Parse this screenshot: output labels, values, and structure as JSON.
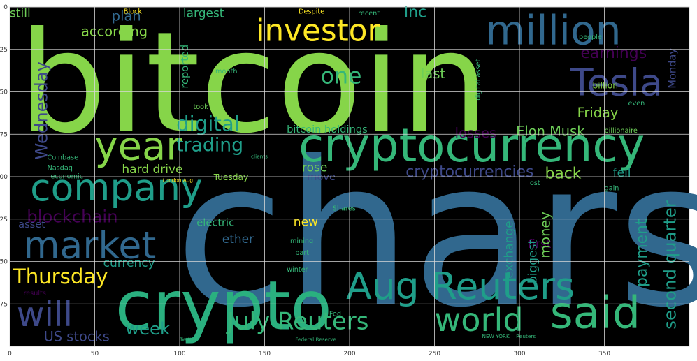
{
  "chart_data": {
    "type": "wordcloud",
    "title": "",
    "xlabel": "",
    "ylabel": "",
    "background": "#000000",
    "grid": true,
    "xlim": [
      0,
      400
    ],
    "ylim": [
      200,
      0
    ],
    "x_ticks": [
      0,
      50,
      100,
      150,
      200,
      250,
      300,
      350
    ],
    "y_ticks": [
      0,
      25,
      50,
      75,
      100,
      125,
      150,
      175
    ],
    "x_tick_labels": [
      "0",
      "50",
      "100",
      "150",
      "200",
      "250",
      "300",
      "350"
    ],
    "y_tick_labels": [
      "0",
      "25",
      "50",
      "75",
      "100",
      "125",
      "150",
      "175"
    ],
    "words": [
      {
        "text": "bitcoin",
        "x": 5,
        "y": 73,
        "size": 82,
        "color": "#86d549"
      },
      {
        "text": "chars",
        "x": 97,
        "y": 175,
        "size": 118,
        "color": "#31688e"
      },
      {
        "text": "crypto",
        "x": 62,
        "y": 190,
        "size": 40,
        "color": "#2ab07f"
      },
      {
        "text": "cryptocurrency",
        "x": 170,
        "y": 91,
        "size": 27,
        "color": "#35b779"
      },
      {
        "text": "Aug Reuters",
        "x": 198,
        "y": 172,
        "size": 22,
        "color": "#1f9e89"
      },
      {
        "text": "said",
        "x": 318,
        "y": 189,
        "size": 26,
        "color": "#35b779"
      },
      {
        "text": "million",
        "x": 280,
        "y": 22,
        "size": 24,
        "color": "#31688e"
      },
      {
        "text": "Tesla",
        "x": 330,
        "y": 52,
        "size": 22,
        "color": "#3e4989"
      },
      {
        "text": "investor",
        "x": 145,
        "y": 20,
        "size": 18,
        "color": "#fde725"
      },
      {
        "text": "year",
        "x": 50,
        "y": 90,
        "size": 23,
        "color": "#86d549"
      },
      {
        "text": "company",
        "x": 12,
        "y": 114,
        "size": 22,
        "color": "#1f9e89"
      },
      {
        "text": "market",
        "x": 8,
        "y": 148,
        "size": 22,
        "color": "#31688e"
      },
      {
        "text": "will",
        "x": 4,
        "y": 188,
        "size": 20,
        "color": "#3e4989"
      },
      {
        "text": "world",
        "x": 250,
        "y": 191,
        "size": 19,
        "color": "#35b779"
      },
      {
        "text": "July Reuters",
        "x": 128,
        "y": 190,
        "size": 14,
        "color": "#35b779"
      },
      {
        "text": "Thursday",
        "x": 2,
        "y": 163,
        "size": 12,
        "color": "#fde725"
      },
      {
        "text": "digital",
        "x": 98,
        "y": 73,
        "size": 12,
        "color": "#1f9e89"
      },
      {
        "text": "one",
        "x": 183,
        "y": 45,
        "size": 13,
        "color": "#35b779"
      },
      {
        "text": "trading",
        "x": 98,
        "y": 85,
        "size": 11,
        "color": "#1f9e89"
      },
      {
        "text": "blockchain",
        "x": 10,
        "y": 127,
        "size": 10,
        "color": "#440154"
      },
      {
        "text": "week",
        "x": 68,
        "y": 193,
        "size": 10,
        "color": "#1f9e89"
      },
      {
        "text": "US stocks",
        "x": 20,
        "y": 197,
        "size": 8,
        "color": "#3e4989"
      },
      {
        "text": "according",
        "x": 42,
        "y": 17,
        "size": 8,
        "color": "#86d549"
      },
      {
        "text": "plan",
        "x": 60,
        "y": 8,
        "size": 8,
        "color": "#31688e"
      },
      {
        "text": "still",
        "x": 0,
        "y": 6,
        "size": 7,
        "color": "#6ece58"
      },
      {
        "text": "largest",
        "x": 102,
        "y": 6,
        "size": 7,
        "color": "#35b779"
      },
      {
        "text": "Inc",
        "x": 232,
        "y": 6,
        "size": 9,
        "color": "#1f9e89"
      },
      {
        "text": "earnings",
        "x": 336,
        "y": 30,
        "size": 9,
        "color": "#440154"
      },
      {
        "text": "Friday",
        "x": 334,
        "y": 65,
        "size": 8,
        "color": "#86d549"
      },
      {
        "text": "Elon Musk",
        "x": 298,
        "y": 76,
        "size": 8,
        "color": "#6ece58"
      },
      {
        "text": "losses",
        "x": 262,
        "y": 77,
        "size": 8,
        "color": "#440154"
      },
      {
        "text": "bitcoin holdings",
        "x": 163,
        "y": 74,
        "size": 6,
        "color": "#35b779"
      },
      {
        "text": "cryptocurrencies",
        "x": 233,
        "y": 100,
        "size": 9,
        "color": "#3e4989"
      },
      {
        "text": "back",
        "x": 315,
        "y": 101,
        "size": 9,
        "color": "#86d549"
      },
      {
        "text": "fell",
        "x": 355,
        "y": 100,
        "size": 7,
        "color": "#1f9e89"
      },
      {
        "text": "hard drive",
        "x": 66,
        "y": 98,
        "size": 7,
        "color": "#86d549"
      },
      {
        "text": "rose",
        "x": 172,
        "y": 97,
        "size": 7,
        "color": "#6ece58"
      },
      {
        "text": "move",
        "x": 175,
        "y": 102,
        "size": 6,
        "color": "#3e4989"
      },
      {
        "text": "new",
        "x": 167,
        "y": 129,
        "size": 7,
        "color": "#fde725"
      },
      {
        "text": "electric",
        "x": 110,
        "y": 129,
        "size": 6,
        "color": "#35b779"
      },
      {
        "text": "ether",
        "x": 125,
        "y": 139,
        "size": 7,
        "color": "#31688e"
      },
      {
        "text": "currency",
        "x": 55,
        "y": 153,
        "size": 7,
        "color": "#1f9e89"
      },
      {
        "text": "asset",
        "x": 5,
        "y": 130,
        "size": 6,
        "color": "#3e4989"
      },
      {
        "text": "last",
        "x": 242,
        "y": 42,
        "size": 8,
        "color": "#6ece58"
      },
      {
        "text": "first",
        "x": 305,
        "y": 142,
        "size": 7,
        "color": "#440154"
      },
      {
        "text": "Tuesday",
        "x": 120,
        "y": 102,
        "size": 5,
        "color": "#86d549"
      },
      {
        "text": "Wednesday",
        "x": 22,
        "y": 90,
        "size": 10,
        "color": "#3e4989",
        "rotate": true
      },
      {
        "text": "reported",
        "x": 105,
        "y": 48,
        "size": 6,
        "color": "#35b779",
        "rotate": true
      },
      {
        "text": "second quarter",
        "x": 392,
        "y": 190,
        "size": 10,
        "color": "#1f9e89",
        "rotate": true
      },
      {
        "text": "payment",
        "x": 375,
        "y": 165,
        "size": 9,
        "color": "#1f9e89",
        "rotate": true
      },
      {
        "text": "money",
        "x": 318,
        "y": 148,
        "size": 8,
        "color": "#6ece58",
        "rotate": true
      },
      {
        "text": "exchange",
        "x": 296,
        "y": 160,
        "size": 7,
        "color": "#1f9e89",
        "rotate": true
      },
      {
        "text": "biggest",
        "x": 310,
        "y": 163,
        "size": 7,
        "color": "#1f9e89",
        "rotate": true
      },
      {
        "text": "Monday",
        "x": 392,
        "y": 48,
        "size": 6,
        "color": "#3e4989",
        "rotate": true
      },
      {
        "text": "billion",
        "x": 343,
        "y": 48,
        "size": 5,
        "color": "#86d549"
      },
      {
        "text": "billionaire",
        "x": 350,
        "y": 74,
        "size": 4,
        "color": "#6ece58"
      },
      {
        "text": "Coinbase",
        "x": 22,
        "y": 90,
        "size": 4,
        "color": "#35b779"
      },
      {
        "text": "Nasdaq",
        "x": 22,
        "y": 96,
        "size": 4,
        "color": "#35b779"
      },
      {
        "text": "economic",
        "x": 24,
        "y": 101,
        "size": 4,
        "color": "#35b779"
      },
      {
        "text": "Block",
        "x": 67,
        "y": 4,
        "size": 4,
        "color": "#fde725"
      },
      {
        "text": "Despite",
        "x": 170,
        "y": 4,
        "size": 4,
        "color": "#fde725"
      },
      {
        "text": "recent",
        "x": 205,
        "y": 5,
        "size": 4,
        "color": "#35b779"
      },
      {
        "text": "people",
        "x": 335,
        "y": 19,
        "size": 4,
        "color": "#35b779"
      },
      {
        "text": "month",
        "x": 121,
        "y": 39,
        "size": 4,
        "color": "#35b779"
      },
      {
        "text": "took",
        "x": 108,
        "y": 60,
        "size": 4,
        "color": "#6ece58"
      },
      {
        "text": "mining",
        "x": 165,
        "y": 139,
        "size": 4,
        "color": "#35b779"
      },
      {
        "text": "part",
        "x": 168,
        "y": 146,
        "size": 4,
        "color": "#35b779"
      },
      {
        "text": "winter",
        "x": 163,
        "y": 156,
        "size": 4,
        "color": "#35b779"
      },
      {
        "text": "Shares",
        "x": 190,
        "y": 120,
        "size": 4,
        "color": "#35b779"
      },
      {
        "text": "Fed",
        "x": 188,
        "y": 182,
        "size": 4,
        "color": "#35b779"
      },
      {
        "text": "Twitter",
        "x": 100,
        "y": 197,
        "size": 3,
        "color": "#35b779"
      },
      {
        "text": "Federal Reserve",
        "x": 168,
        "y": 197,
        "size": 3,
        "color": "#35b779"
      },
      {
        "text": "NEW YORK",
        "x": 278,
        "y": 195,
        "size": 3,
        "color": "#35b779"
      },
      {
        "text": "Reuters",
        "x": 298,
        "y": 195,
        "size": 3,
        "color": "#35b779"
      },
      {
        "text": "lost",
        "x": 305,
        "y": 105,
        "size": 4,
        "color": "#35b779"
      },
      {
        "text": "gain",
        "x": 350,
        "y": 108,
        "size": 4,
        "color": "#35b779"
      },
      {
        "text": "even",
        "x": 364,
        "y": 58,
        "size": 4,
        "color": "#35b779"
      },
      {
        "text": "results",
        "x": 8,
        "y": 170,
        "size": 4,
        "color": "#440154"
      },
      {
        "text": "London Aug",
        "x": 90,
        "y": 103,
        "size": 3,
        "color": "#fde725"
      },
      {
        "text": "clients",
        "x": 142,
        "y": 89,
        "size": 3,
        "color": "#35b779"
      },
      {
        "text": "digital asset",
        "x": 277,
        "y": 55,
        "size": 4,
        "color": "#35b779",
        "rotate": true
      }
    ]
  }
}
